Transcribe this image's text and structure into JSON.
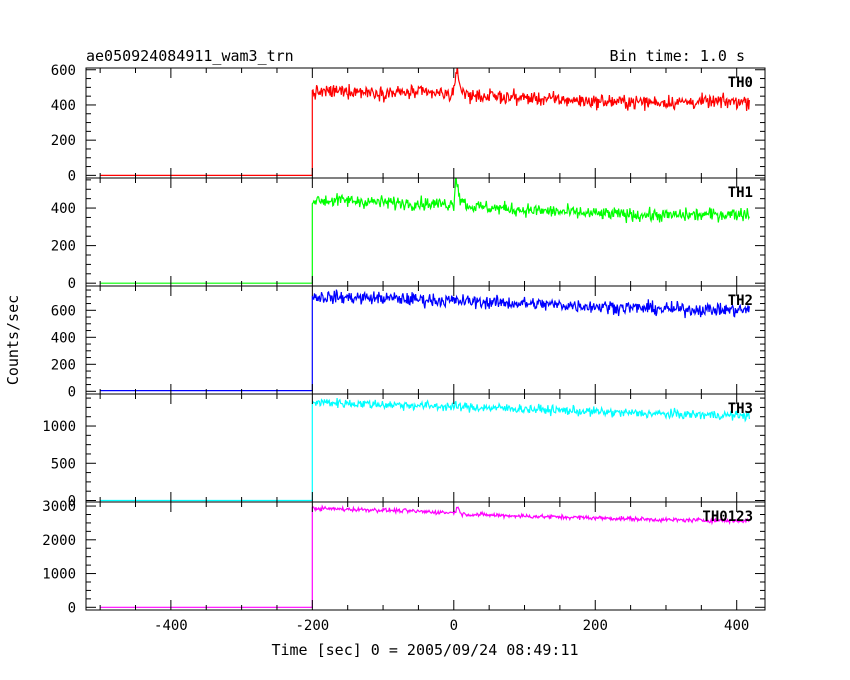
{
  "header": {
    "title": "ae050924084911_wam3_trn",
    "bin_time": "Bin time: 1.0 s"
  },
  "xaxis": {
    "label": "Time [sec] 0 = 2005/09/24 08:49:11",
    "ticks": [
      -400,
      -200,
      0,
      200,
      400
    ],
    "range": [
      -520,
      440
    ]
  },
  "ylabel": "Counts/sec",
  "chart_data": {
    "type": "line",
    "title": "ae050924084911_wam3_trn",
    "xlabel": "Time [sec] 0 = 2005/09/24 08:49:11",
    "ylabel": "Counts/sec",
    "x_range": [
      -520,
      440
    ],
    "x_ticks": [
      -400,
      -200,
      0,
      200,
      400
    ],
    "panels": [
      {
        "name": "TH0",
        "color": "#ff0000",
        "ylim": [
          -15,
          610
        ],
        "yticks": [
          0,
          200,
          400,
          600
        ],
        "data_start": -500,
        "data_end": 418,
        "step_time": -200,
        "pre_level": 0,
        "points": [
          [
            -200,
            470
          ],
          [
            -150,
            480
          ],
          [
            -100,
            470
          ],
          [
            -50,
            470
          ],
          [
            0,
            460
          ],
          [
            5,
            610
          ],
          [
            10,
            490
          ],
          [
            20,
            455
          ],
          [
            100,
            440
          ],
          [
            200,
            420
          ],
          [
            300,
            415
          ],
          [
            418,
            420
          ]
        ],
        "noise": 28
      },
      {
        "name": "TH1",
        "color": "#00ff00",
        "ylim": [
          -15,
          560
        ],
        "yticks": [
          0,
          200,
          400
        ],
        "data_start": -500,
        "data_end": 418,
        "step_time": -200,
        "pre_level": 0,
        "points": [
          [
            -200,
            440
          ],
          [
            -150,
            440
          ],
          [
            -100,
            430
          ],
          [
            -50,
            425
          ],
          [
            0,
            420
          ],
          [
            3,
            580
          ],
          [
            8,
            460
          ],
          [
            20,
            410
          ],
          [
            100,
            390
          ],
          [
            200,
            370
          ],
          [
            300,
            360
          ],
          [
            418,
            370
          ]
        ],
        "noise": 25
      },
      {
        "name": "TH2",
        "color": "#0000ff",
        "ylim": [
          -20,
          780
        ],
        "yticks": [
          0,
          200,
          400,
          600
        ],
        "data_start": -500,
        "data_end": 418,
        "step_time": -200,
        "pre_level": 5,
        "points": [
          [
            -200,
            700
          ],
          [
            -100,
            690
          ],
          [
            0,
            670
          ],
          [
            100,
            650
          ],
          [
            200,
            630
          ],
          [
            300,
            610
          ],
          [
            418,
            600
          ]
        ],
        "noise": 35
      },
      {
        "name": "TH3",
        "color": "#00ffff",
        "ylim": [
          -20,
          1430
        ],
        "yticks": [
          0,
          500,
          1000
        ],
        "data_start": -500,
        "data_end": 418,
        "step_time": -200,
        "pre_level": 0,
        "points": [
          [
            -200,
            1320
          ],
          [
            -100,
            1290
          ],
          [
            0,
            1260
          ],
          [
            100,
            1230
          ],
          [
            200,
            1190
          ],
          [
            300,
            1160
          ],
          [
            418,
            1140
          ]
        ],
        "noise": 45
      },
      {
        "name": "TH0123",
        "color": "#ff00ff",
        "ylim": [
          -80,
          3120
        ],
        "yticks": [
          0,
          1000,
          2000,
          3000
        ],
        "data_start": -500,
        "data_end": 418,
        "step_time": -200,
        "pre_level": 0,
        "points": [
          [
            -200,
            2930
          ],
          [
            -100,
            2880
          ],
          [
            0,
            2800
          ],
          [
            5,
            2950
          ],
          [
            12,
            2760
          ],
          [
            100,
            2700
          ],
          [
            200,
            2650
          ],
          [
            300,
            2590
          ],
          [
            418,
            2560
          ]
        ],
        "noise": 45
      }
    ]
  }
}
